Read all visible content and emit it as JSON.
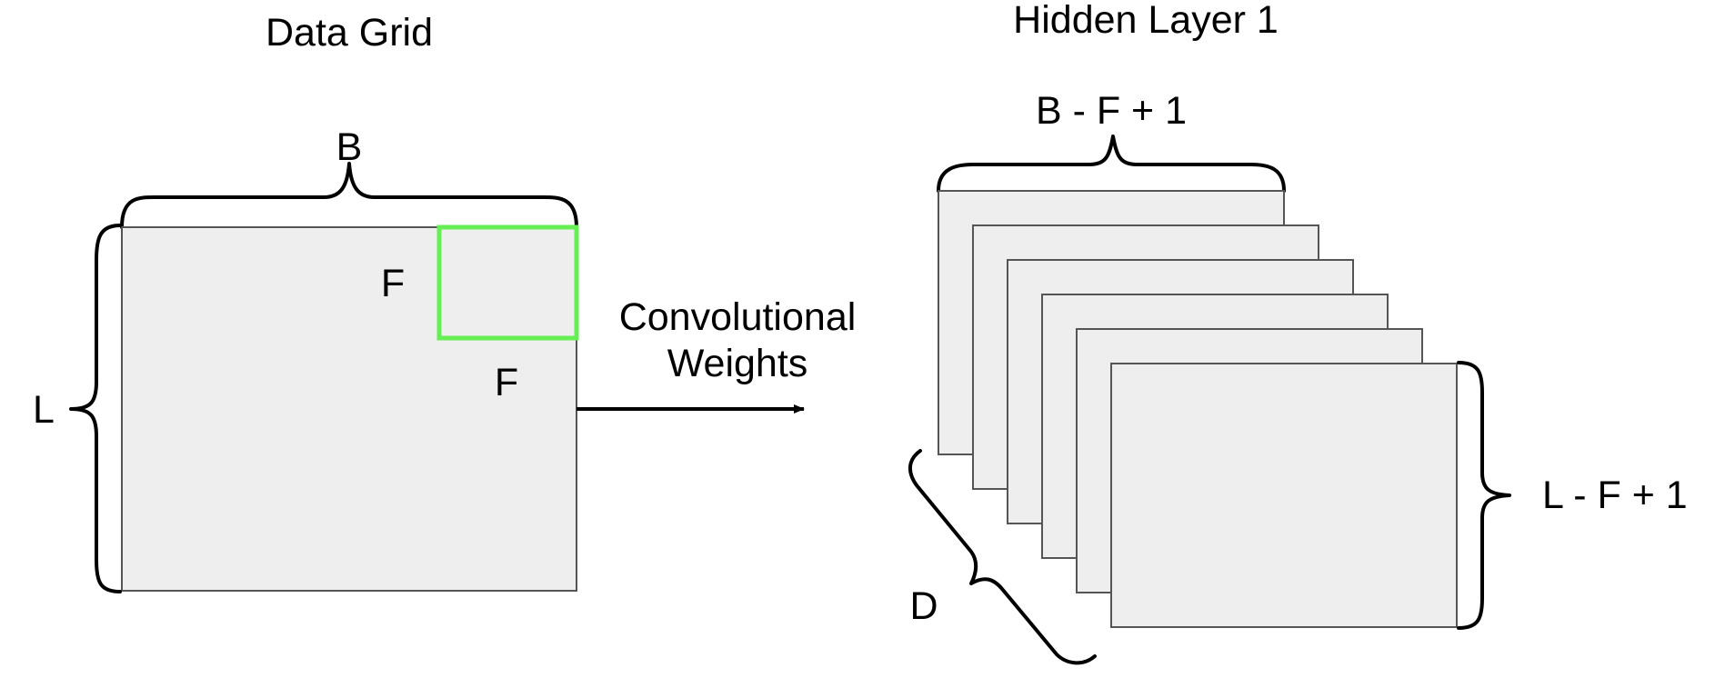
{
  "data_grid": {
    "title": "Data Grid",
    "width_label": "B",
    "height_label": "L",
    "filter_height_label": "F",
    "filter_width_label": "F"
  },
  "arrow": {
    "label_line1": "Convolutional",
    "label_line2": "Weights"
  },
  "hidden_layer": {
    "title": "Hidden Layer 1",
    "width_label": "B - F + 1",
    "height_label": "L - F + 1",
    "depth_label": "D",
    "panel_count": 6
  },
  "colors": {
    "grid_fill": "#eeeeee",
    "grid_stroke": "#555555",
    "filter_window": "#66ee55",
    "ink": "#000000"
  }
}
